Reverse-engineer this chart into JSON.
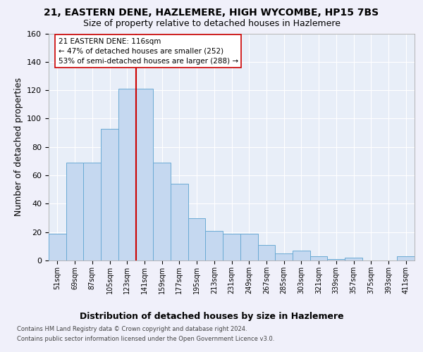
{
  "title1": "21, EASTERN DENE, HAZLEMERE, HIGH WYCOMBE, HP15 7BS",
  "title2": "Size of property relative to detached houses in Hazlemere",
  "xlabel": "Distribution of detached houses by size in Hazlemere",
  "ylabel": "Number of detached properties",
  "footer1": "Contains HM Land Registry data © Crown copyright and database right 2024.",
  "footer2": "Contains public sector information licensed under the Open Government Licence v3.0.",
  "bin_labels": [
    "51sqm",
    "69sqm",
    "87sqm",
    "105sqm",
    "123sqm",
    "141sqm",
    "159sqm",
    "177sqm",
    "195sqm",
    "213sqm",
    "231sqm",
    "249sqm",
    "267sqm",
    "285sqm",
    "303sqm",
    "321sqm",
    "339sqm",
    "357sqm",
    "375sqm",
    "393sqm",
    "411sqm"
  ],
  "bar_values": [
    19,
    69,
    69,
    93,
    121,
    121,
    69,
    54,
    30,
    21,
    19,
    19,
    11,
    5,
    7,
    3,
    1,
    2,
    0,
    0,
    3
  ],
  "bar_color": "#c5d8f0",
  "bar_edge_color": "#6aaad4",
  "reference_line_x": 4.5,
  "reference_line_color": "#cc0000",
  "annotation_line1": "21 EASTERN DENE: 116sqm",
  "annotation_line2": "← 47% of detached houses are smaller (252)",
  "annotation_line3": "53% of semi-detached houses are larger (288) →",
  "annotation_box_facecolor": "#ffffff",
  "annotation_box_edgecolor": "#cc0000",
  "ylim": [
    0,
    160
  ],
  "yticks": [
    0,
    20,
    40,
    60,
    80,
    100,
    120,
    140,
    160
  ],
  "bg_color": "#e8eef8",
  "grid_color": "#ffffff",
  "fig_facecolor": "#f0f0fa"
}
